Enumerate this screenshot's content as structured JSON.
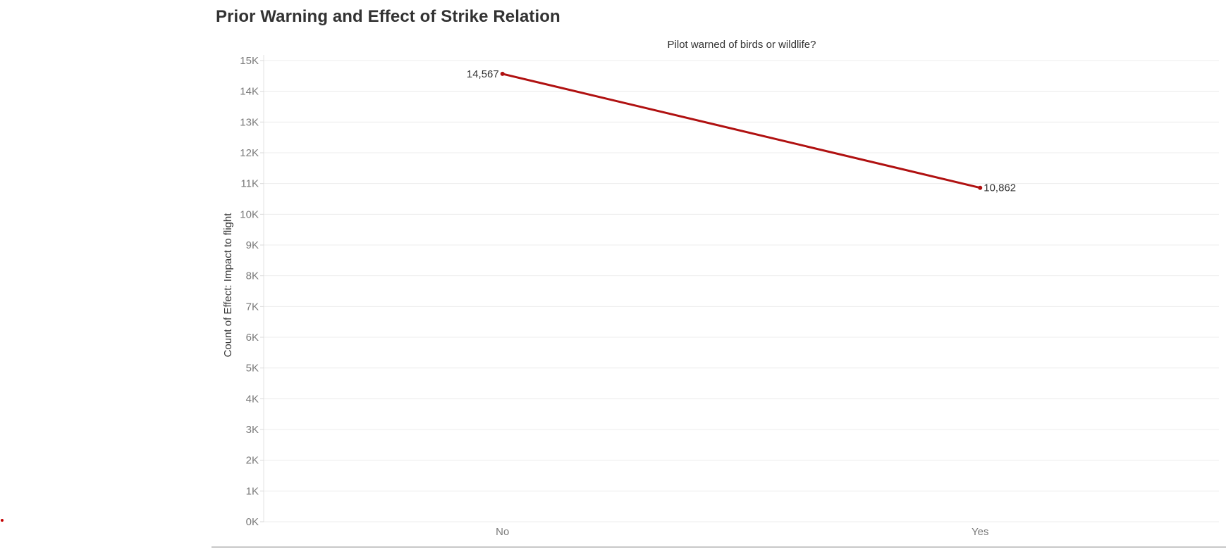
{
  "chart_data": {
    "type": "line",
    "title": "Prior Warning and Effect of Strike Relation",
    "column_header": "Pilot warned of birds or wildlife?",
    "xlabel": "",
    "ylabel": "Count of Effect: Impact to flight",
    "categories": [
      "No",
      "Yes"
    ],
    "values": [
      14567,
      10862
    ],
    "data_labels": [
      "14,567",
      "10,862"
    ],
    "ylim": [
      0,
      15000
    ],
    "yticks": [
      0,
      1000,
      2000,
      3000,
      4000,
      5000,
      6000,
      7000,
      8000,
      9000,
      10000,
      11000,
      12000,
      13000,
      14000,
      15000
    ],
    "ytick_labels": [
      "0K",
      "1K",
      "2K",
      "3K",
      "4K",
      "5K",
      "6K",
      "7K",
      "8K",
      "9K",
      "10K",
      "11K",
      "12K",
      "13K",
      "14K",
      "15K"
    ],
    "grid": true,
    "line_color": "#b01111",
    "gridline_color": "#ececec"
  }
}
